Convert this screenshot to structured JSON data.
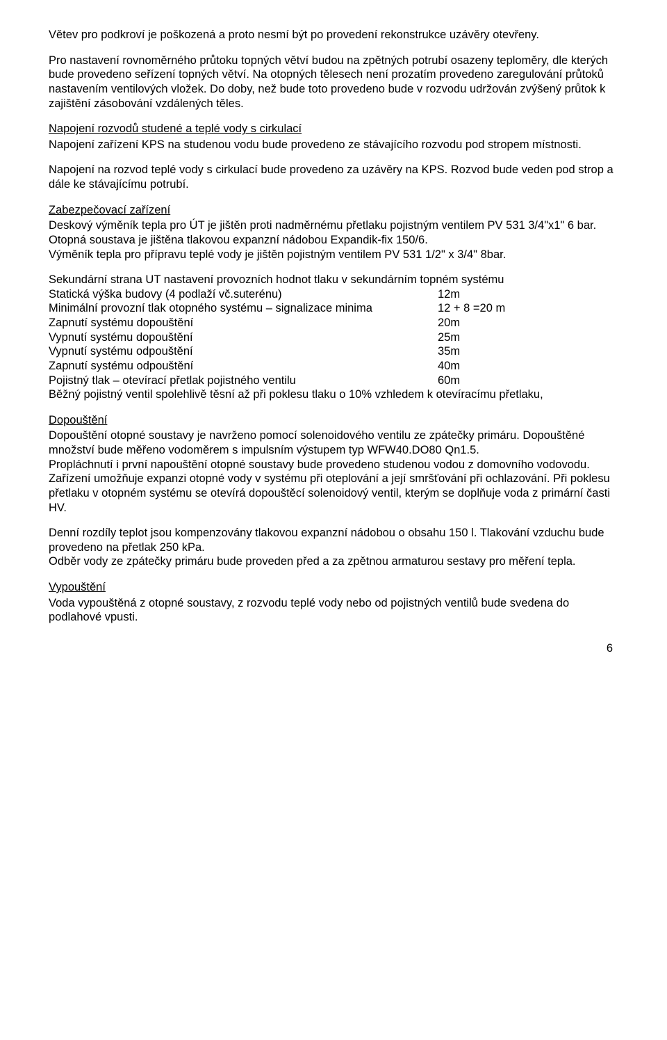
{
  "intro_para": "Větev pro podkroví je poškozená a proto nesmí být po provedení rekonstrukce uzávěry otevřeny.",
  "para2": "Pro nastavení rovnoměrného průtoku topných větví budou na zpětných potrubí osazeny teploměry, dle kterých bude provedeno seřízení topných větví. Na otopných tělesech není prozatím provedeno zaregulování průtoků nastavením ventilových vložek. Do doby, než bude toto provedeno bude v rozvodu udržován zvýšený průtok k zajištění zásobování vzdálených těles.",
  "section1_heading": "Napojení rozvodů studené a teplé vody s cirkulací",
  "section1_p1": "Napojení zařízení KPS na studenou vodu bude provedeno ze stávajícího rozvodu pod stropem místnosti.",
  "section1_p2": "Napojení na rozvod teplé vody s cirkulací bude provedeno za uzávěry na KPS. Rozvod bude veden pod strop a dále ke stávajícímu potrubí.",
  "section2_heading": "Zabezpečovací zařízení",
  "section2_p1": "Deskový výměník tepla pro ÚT je jištěn proti nadměrnému přetlaku pojistným ventilem PV 531 3/4\"x1\" 6 bar. Otopná soustava je jištěna tlakovou expanzní nádobou Expandik-fix 150/6.",
  "section2_p2": "Výměník tepla pro přípravu teplé vody je jištěn pojistným ventilem PV 531 1/2\" x 3/4\" 8bar.",
  "section3_heading": "Sekundární strana UT nastavení provozních hodnot tlaku v sekundárním topném systému",
  "table": [
    {
      "label": "Statická výška budovy (4 podlaží vč.suterénu)",
      "value": "12m"
    },
    {
      "label": "Minimální provozní tlak otopného systému – signalizace minima",
      "value": "12 + 8 =20 m"
    },
    {
      "label": "Zapnutí systému dopouštění",
      "value": "20m"
    },
    {
      "label": "Vypnutí systému dopouštění",
      "value": "25m"
    },
    {
      "label": "Vypnutí systému odpouštění",
      "value": "35m"
    },
    {
      "label": "Zapnutí systému odpouštění",
      "value": "40m"
    },
    {
      "label": "Pojistný tlak – otevírací přetlak pojistného ventilu",
      "value": "60m"
    }
  ],
  "section3_p1": "Běžný pojistný ventil spolehlivě těsní až při poklesu tlaku o 10% vzhledem k otevíracímu přetlaku,",
  "section4_heading": "Dopouštění",
  "section4_p1": "Dopouštění otopné soustavy je navrženo pomocí solenoidového ventilu ze zpátečky primáru. Dopouštěné množství bude měřeno vodoměrem s impulsním výstupem typ WFW40.DO80 Qn1.5.",
  "section4_p2": "Propláchnutí i první napouštění otopné soustavy bude provedeno studenou vodou z domovního vodovodu.",
  "section4_p3": "Zařízení umožňuje expanzi otopné vody v systému při oteplování a její smršťování při ochlazování. Při poklesu přetlaku v otopném systému se otevírá dopouštěcí solenoidový ventil, kterým se doplňuje voda z primární časti HV.",
  "section4_p4": "Denní rozdíly teplot jsou kompenzovány tlakovou expanzní nádobou o obsahu 150 l. Tlakování vzduchu bude provedeno na přetlak 250 kPa.",
  "section4_p5": "Odběr vody ze zpátečky primáru bude proveden před a za zpětnou armaturou sestavy pro měření tepla.",
  "section5_heading": "Vypouštění",
  "section5_p1": "Voda vypouštěná z otopné soustavy, z rozvodu teplé vody nebo od pojistných ventilů bude svedena do podlahové vpusti.",
  "page_number": "6"
}
